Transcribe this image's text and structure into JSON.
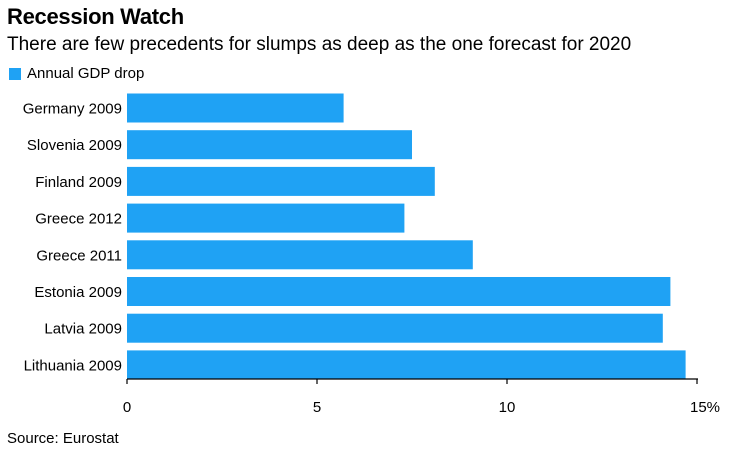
{
  "title": "Recession Watch",
  "subtitle": "There are few precedents for slumps as deep as the one forecast for 2020",
  "source": "Source: Eurostat",
  "colors": {
    "bar": "#1fa2f4",
    "axis": "#000000",
    "text": "#000000"
  },
  "chart_data": {
    "type": "bar",
    "orientation": "horizontal",
    "categories": [
      "Germany 2009",
      "Slovenia 2009",
      "Finland 2009",
      "Greece 2012",
      "Greece 2011",
      "Estonia 2009",
      "Latvia 2009",
      "Lithuania 2009"
    ],
    "series": [
      {
        "name": "Annual GDP drop",
        "values": [
          5.7,
          7.5,
          8.1,
          7.3,
          9.1,
          14.3,
          14.1,
          14.7
        ]
      }
    ],
    "xlim": [
      0,
      15
    ],
    "xticks": [
      "0",
      "5",
      "10",
      "15%"
    ],
    "xtick_values": [
      0,
      5,
      10,
      15
    ],
    "legend": "top-left",
    "grid": false
  }
}
